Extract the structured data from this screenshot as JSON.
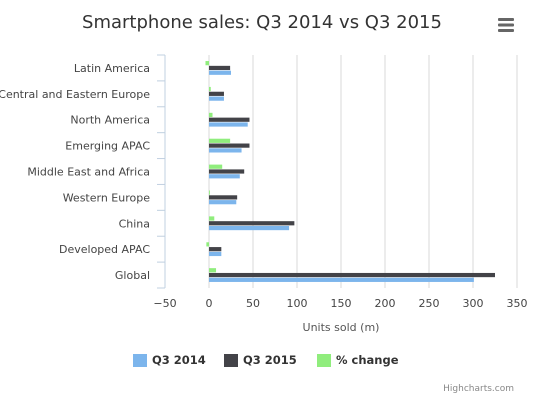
{
  "chart_data": {
    "type": "bar",
    "orientation": "horizontal",
    "title": "Smartphone sales: Q3 2014 vs Q3 2015",
    "xlabel": "Units sold (m)",
    "categories": [
      "Latin America",
      "Central and Eastern Europe",
      "North America",
      "Emerging APAC",
      "Middle East and Africa",
      "Western Europe",
      "China",
      "Developed APAC",
      "Global"
    ],
    "series": [
      {
        "name": "Q3 2014",
        "color": "#7cb5ec",
        "values": [
          25,
          17,
          44,
          37,
          35,
          31,
          91,
          14,
          301
        ]
      },
      {
        "name": "Q3 2015",
        "color": "#434348",
        "values": [
          24,
          17,
          46,
          46,
          40,
          32,
          97,
          14,
          325
        ]
      },
      {
        "name": "% change",
        "color": "#90ed7d",
        "values": [
          -4,
          2,
          4,
          24,
          15,
          1,
          6,
          -3,
          8
        ]
      }
    ],
    "ticks": [
      -50,
      0,
      50,
      100,
      150,
      200,
      250,
      300,
      350
    ],
    "xlim": [
      -50,
      350
    ],
    "grid": true,
    "legend_position": "bottom"
  },
  "credits": "Highcharts.com",
  "menu_icon": "hamburger-menu-icon"
}
